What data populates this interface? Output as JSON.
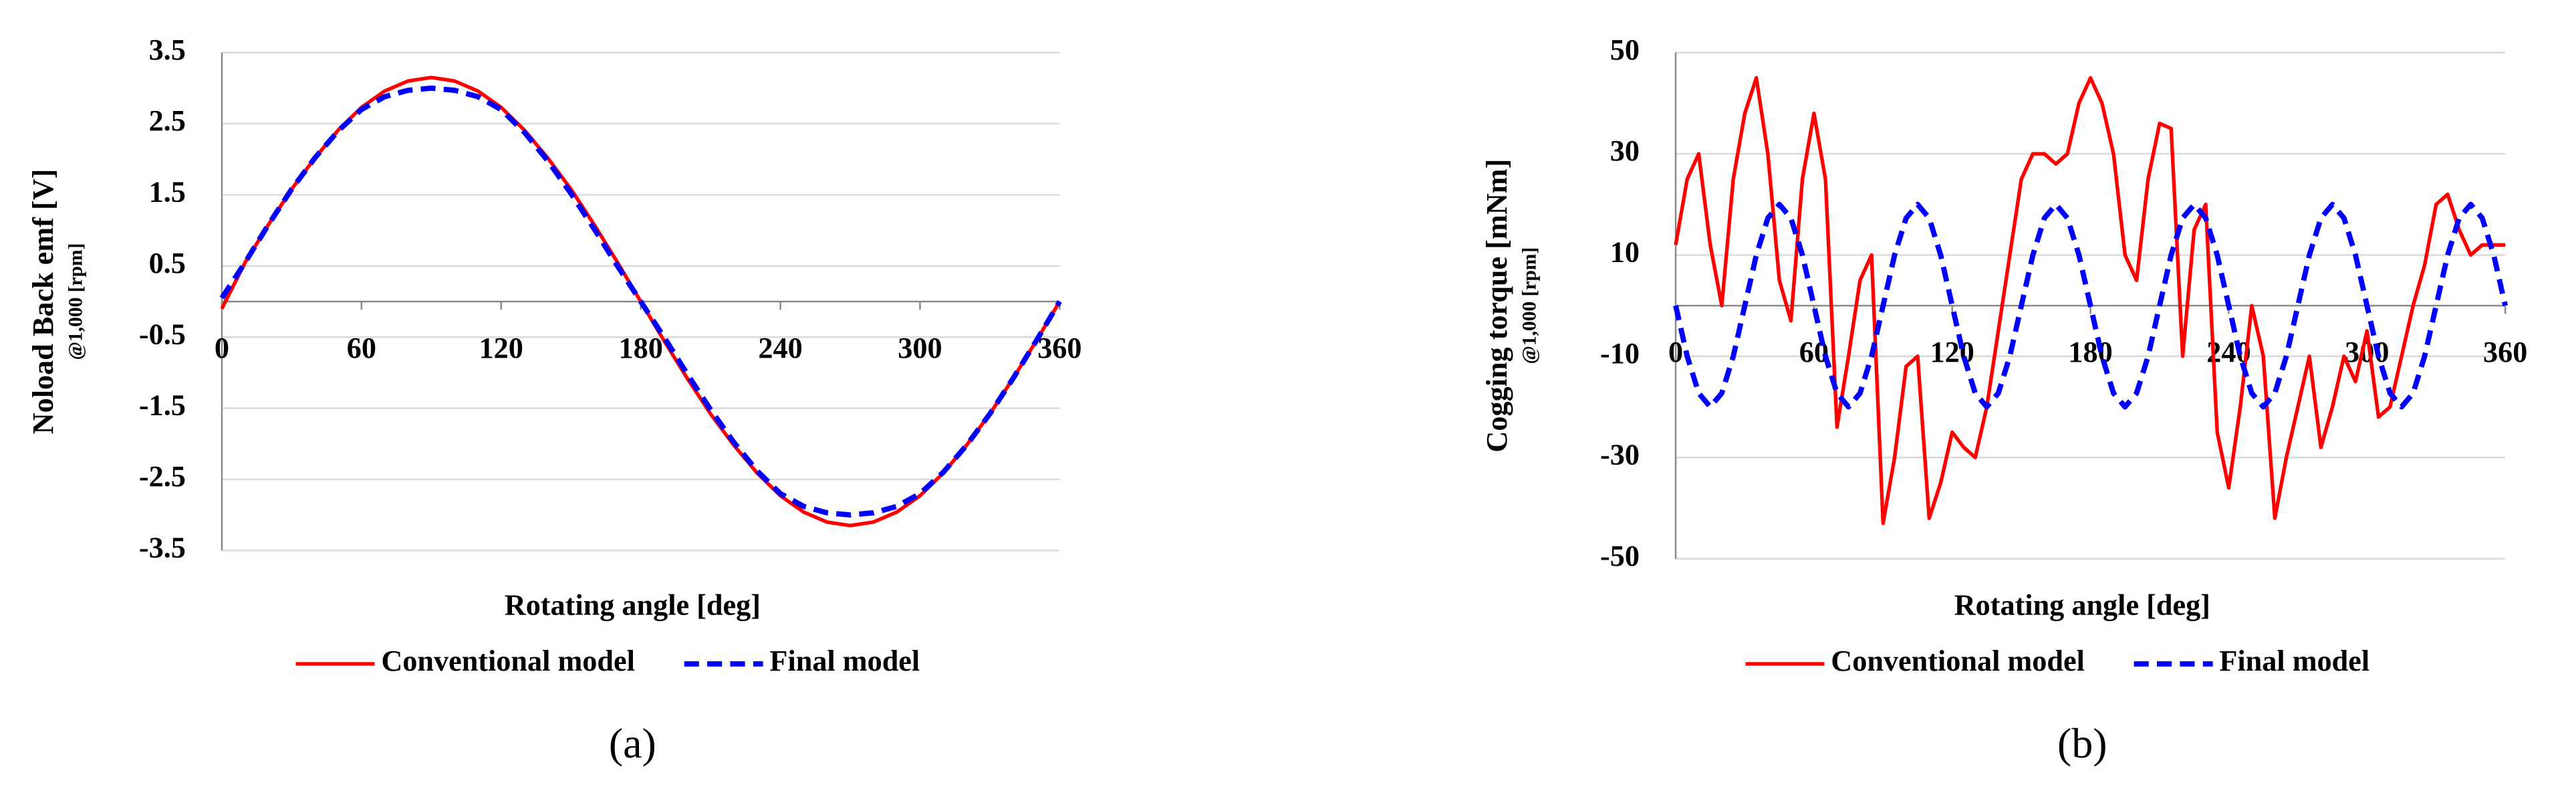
{
  "chart_data": [
    {
      "type": "line",
      "ylabel": "Noload Back emf [V]",
      "ylabel_note": "@1,000 [rpm]",
      "xlabel": "Rotating angle [deg]",
      "caption": "(a)",
      "x": [
        0,
        10,
        20,
        30,
        40,
        50,
        60,
        70,
        80,
        90,
        100,
        110,
        120,
        130,
        140,
        150,
        160,
        170,
        180,
        190,
        200,
        210,
        220,
        230,
        240,
        250,
        260,
        270,
        280,
        290,
        300,
        310,
        320,
        330,
        340,
        350,
        360
      ],
      "xlim": [
        0,
        360
      ],
      "xticks": [
        0,
        60,
        120,
        180,
        240,
        300,
        360
      ],
      "ylim": [
        -3.5,
        3.5
      ],
      "yticks": [
        -3.5,
        -2.5,
        -1.5,
        -0.5,
        0.5,
        1.5,
        2.5,
        3.5
      ],
      "grid": true,
      "legend": "bottom",
      "series": [
        {
          "name": "Conventional model",
          "color": "#ff0000",
          "dash": false,
          "values": [
            -0.1,
            0.55,
            1.08,
            1.58,
            2.02,
            2.41,
            2.73,
            2.96,
            3.1,
            3.15,
            3.1,
            2.96,
            2.73,
            2.41,
            2.02,
            1.58,
            1.08,
            0.55,
            0,
            -0.55,
            -1.08,
            -1.58,
            -2.02,
            -2.41,
            -2.73,
            -2.96,
            -3.1,
            -3.15,
            -3.1,
            -2.96,
            -2.73,
            -2.41,
            -2.02,
            -1.58,
            -1.08,
            -0.55,
            0
          ]
        },
        {
          "name": "Final model",
          "color": "#0000ff",
          "dash": true,
          "values": [
            0.05,
            0.55,
            1.08,
            1.58,
            2.02,
            2.4,
            2.7,
            2.88,
            2.97,
            3.0,
            2.97,
            2.88,
            2.7,
            2.38,
            1.98,
            1.52,
            1.02,
            0.5,
            0,
            -0.5,
            -1.02,
            -1.52,
            -1.98,
            -2.38,
            -2.7,
            -2.88,
            -2.97,
            -3.0,
            -2.97,
            -2.88,
            -2.7,
            -2.4,
            -2.02,
            -1.58,
            -1.08,
            -0.55,
            0
          ]
        }
      ]
    },
    {
      "type": "line",
      "ylabel": "Cogging torque [mNm]",
      "ylabel_note": "@1,000 [rpm]",
      "xlabel": "Rotating angle [deg]",
      "caption": "(b)",
      "x": [
        0,
        5,
        10,
        15,
        20,
        25,
        30,
        35,
        40,
        45,
        50,
        55,
        60,
        65,
        70,
        75,
        80,
        85,
        90,
        95,
        100,
        105,
        110,
        115,
        120,
        125,
        130,
        135,
        140,
        145,
        150,
        155,
        160,
        165,
        170,
        175,
        180,
        185,
        190,
        195,
        200,
        205,
        210,
        215,
        220,
        225,
        230,
        235,
        240,
        245,
        250,
        255,
        260,
        265,
        270,
        275,
        280,
        285,
        290,
        295,
        300,
        305,
        310,
        315,
        320,
        325,
        330,
        335,
        340,
        345,
        350,
        355,
        360
      ],
      "xlim": [
        0,
        360
      ],
      "xticks": [
        0,
        60,
        120,
        180,
        240,
        300,
        360
      ],
      "ylim": [
        -50,
        50
      ],
      "yticks": [
        -50,
        -30,
        -10,
        10,
        30,
        50
      ],
      "grid": true,
      "legend": "bottom",
      "series": [
        {
          "name": "Conventional model",
          "color": "#ff0000",
          "dash": false,
          "values": [
            12,
            25,
            30,
            12,
            0,
            25,
            38,
            45,
            30,
            5,
            -3,
            25,
            38,
            25,
            -24,
            -10,
            5,
            10,
            -43,
            -30,
            -12,
            -10,
            -42,
            -35,
            -25,
            -28,
            -30,
            -20,
            -5,
            10,
            25,
            30,
            30,
            28,
            30,
            40,
            45,
            40,
            30,
            10,
            5,
            25,
            36,
            35,
            -10,
            15,
            20,
            -25,
            -36,
            -20,
            0,
            -10,
            -42,
            -30,
            -20,
            -10,
            -28,
            -20,
            -10,
            -15,
            -5,
            -22,
            -20,
            -10,
            0,
            8,
            20,
            22,
            15,
            10,
            12,
            12,
            12
          ]
        },
        {
          "name": "Final model",
          "color": "#0000ff",
          "dash": true,
          "values": [
            0,
            -10,
            -17.3,
            -20,
            -17.3,
            -10,
            0,
            10,
            17.3,
            20,
            17.3,
            10,
            0,
            -10,
            -17.3,
            -20,
            -17.3,
            -10,
            0,
            10,
            17.3,
            20,
            17.3,
            10,
            0,
            -10,
            -17.3,
            -20,
            -17.3,
            -10,
            0,
            10,
            17.3,
            20,
            17.3,
            10,
            0,
            -10,
            -17.3,
            -20,
            -17.3,
            -10,
            0,
            10,
            17.3,
            20,
            17.3,
            10,
            0,
            -10,
            -17.3,
            -20,
            -17.3,
            -10,
            0,
            10,
            17.3,
            20,
            17.3,
            10,
            0,
            -10,
            -17.3,
            -20,
            -17.3,
            -10,
            0,
            10,
            17.3,
            20,
            17.3,
            10,
            0
          ]
        }
      ]
    }
  ]
}
